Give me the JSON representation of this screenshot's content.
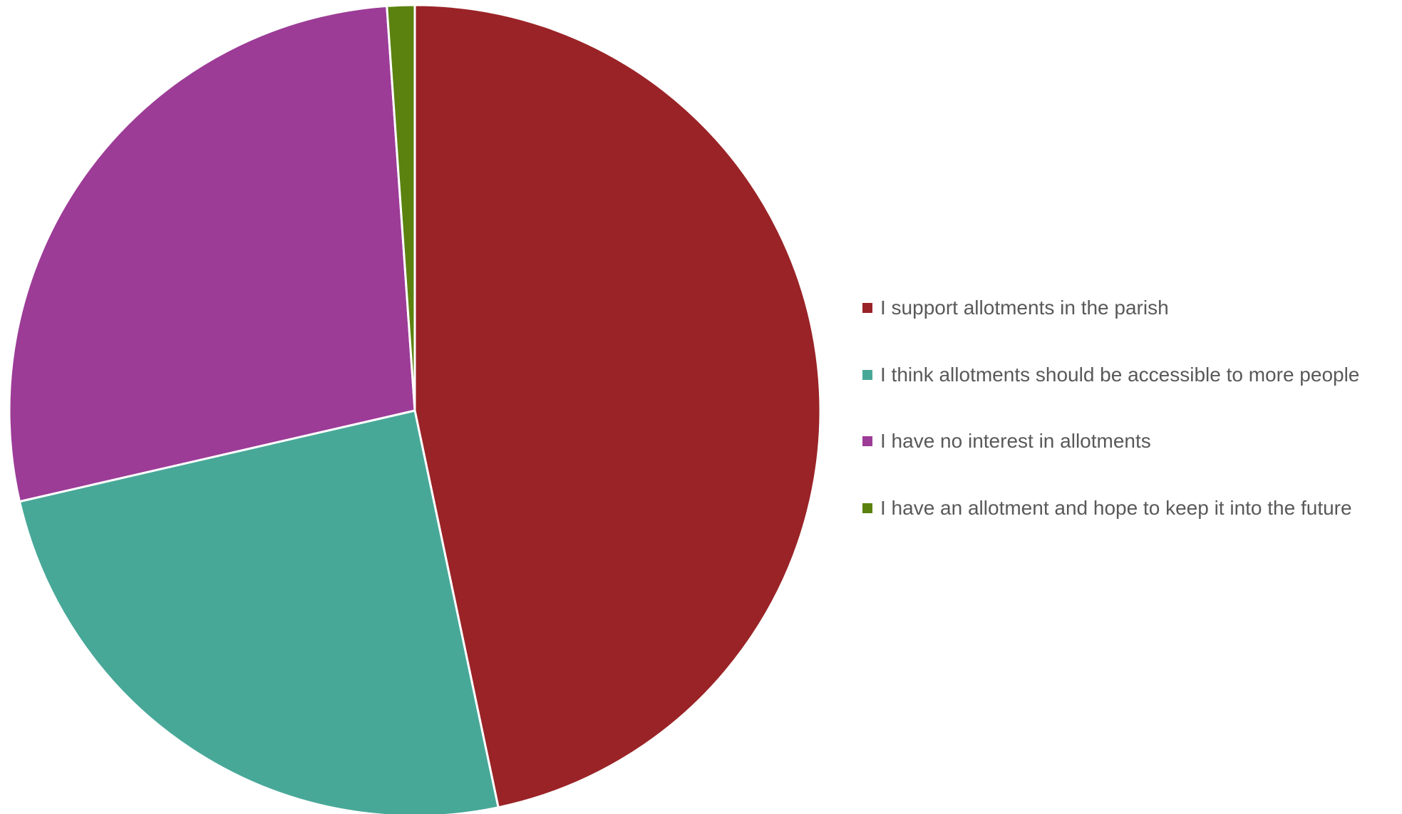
{
  "chart_data": {
    "type": "pie",
    "title": "",
    "slices": [
      {
        "label": "I support allotments in the parish",
        "value": 46.7,
        "color": "#9A2327"
      },
      {
        "label": "I think allotments should be accessible to more people",
        "value": 24.7,
        "color": "#48A898"
      },
      {
        "label": "I have no interest in allotments",
        "value": 27.5,
        "color": "#9C3C97"
      },
      {
        "label": "I have an allotment and hope to keep it into the future",
        "value": 1.1,
        "color": "#5B820F"
      }
    ],
    "legend_position": "right"
  }
}
